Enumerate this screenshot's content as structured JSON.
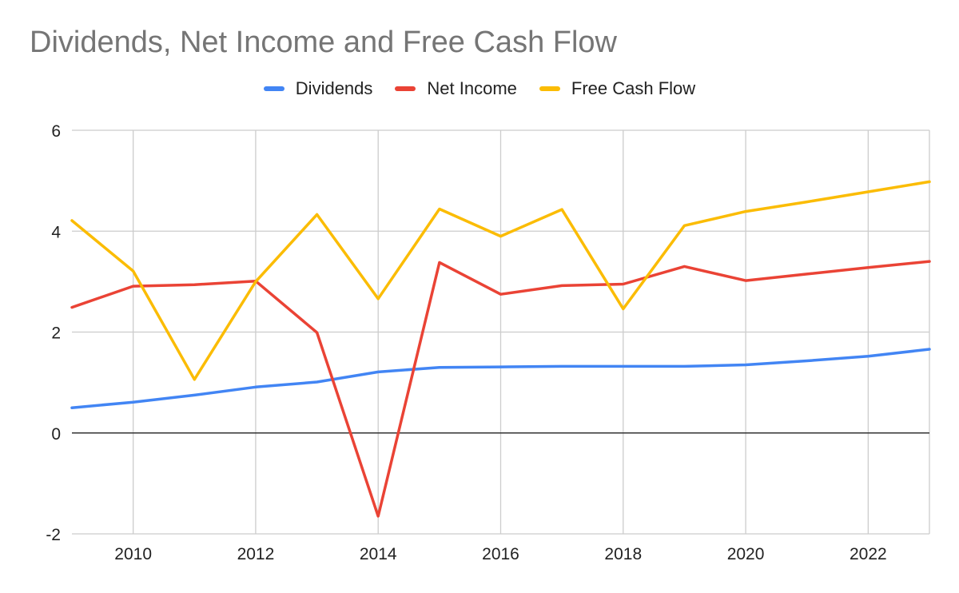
{
  "chart_data": {
    "type": "line",
    "title": "Dividends, Net Income and Free Cash Flow",
    "xlabel": "",
    "ylabel": "",
    "x": [
      2009,
      2010,
      2011,
      2012,
      2013,
      2014,
      2015,
      2016,
      2017,
      2018,
      2019,
      2020,
      2021,
      2022,
      2023
    ],
    "xlim": [
      2009,
      2023
    ],
    "ylim": [
      -2,
      6
    ],
    "x_ticks": [
      "2010",
      "2012",
      "2014",
      "2016",
      "2018",
      "2020",
      "2022"
    ],
    "y_ticks": [
      "-2",
      "0",
      "2",
      "4",
      "6"
    ],
    "grid": true,
    "legend_position": "top",
    "series": [
      {
        "name": "Dividends",
        "color": "#4285F4",
        "values": [
          0.5,
          0.61,
          0.75,
          0.91,
          1.01,
          1.21,
          1.3,
          1.31,
          1.32,
          1.32,
          1.32,
          1.35,
          1.43,
          1.52,
          1.66
        ]
      },
      {
        "name": "Net Income",
        "color": "#EA4335",
        "values": [
          2.49,
          2.91,
          2.94,
          3.01,
          1.99,
          -1.65,
          3.38,
          2.75,
          2.92,
          2.95,
          3.3,
          3.02,
          3.15,
          3.28,
          3.4
        ]
      },
      {
        "name": "Free Cash Flow",
        "color": "#FBBC04",
        "values": [
          4.21,
          3.21,
          1.06,
          3.0,
          4.33,
          2.66,
          4.44,
          3.9,
          4.43,
          2.46,
          4.11,
          4.39,
          4.58,
          4.78,
          4.98
        ]
      }
    ]
  }
}
